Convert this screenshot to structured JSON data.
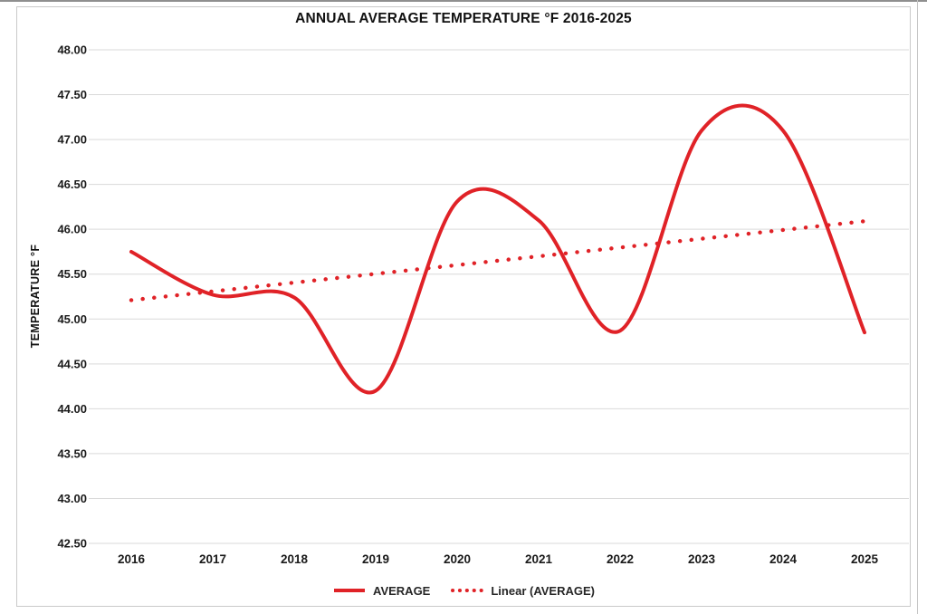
{
  "chart_data": {
    "type": "line",
    "title": "ANNUAL AVERAGE TEMPERATURE °F 2016-2025",
    "xlabel": "",
    "ylabel": "TEMPERATURE °F",
    "categories": [
      "2016",
      "2017",
      "2018",
      "2019",
      "2020",
      "2021",
      "2022",
      "2023",
      "2024",
      "2025"
    ],
    "series": [
      {
        "name": "AVERAGE",
        "style": "solid-smooth",
        "color": "#e02227",
        "values": [
          45.75,
          45.27,
          45.24,
          44.2,
          46.31,
          46.1,
          44.87,
          47.1,
          47.1,
          44.85
        ]
      },
      {
        "name": "Linear (AVERAGE)",
        "style": "dotted",
        "trend": true,
        "color": "#e02227",
        "values": [
          45.21,
          45.31,
          45.41,
          45.5,
          45.6,
          45.7,
          45.8,
          45.89,
          45.99,
          46.09
        ]
      }
    ],
    "ylim": [
      42.5,
      48.0
    ],
    "ytick_step": 0.5,
    "y_ticks": [
      "48.00",
      "47.50",
      "47.00",
      "46.50",
      "46.00",
      "45.50",
      "45.00",
      "44.50",
      "44.00",
      "43.50",
      "43.00",
      "42.50"
    ],
    "grid": "horizontal",
    "grid_color": "#d9d9d9",
    "legend_position": "bottom"
  },
  "colors": {
    "series_red": "#e02227",
    "grid": "#d9d9d9",
    "text": "#1a1a1a",
    "frame_border": "#c9c9c9"
  }
}
